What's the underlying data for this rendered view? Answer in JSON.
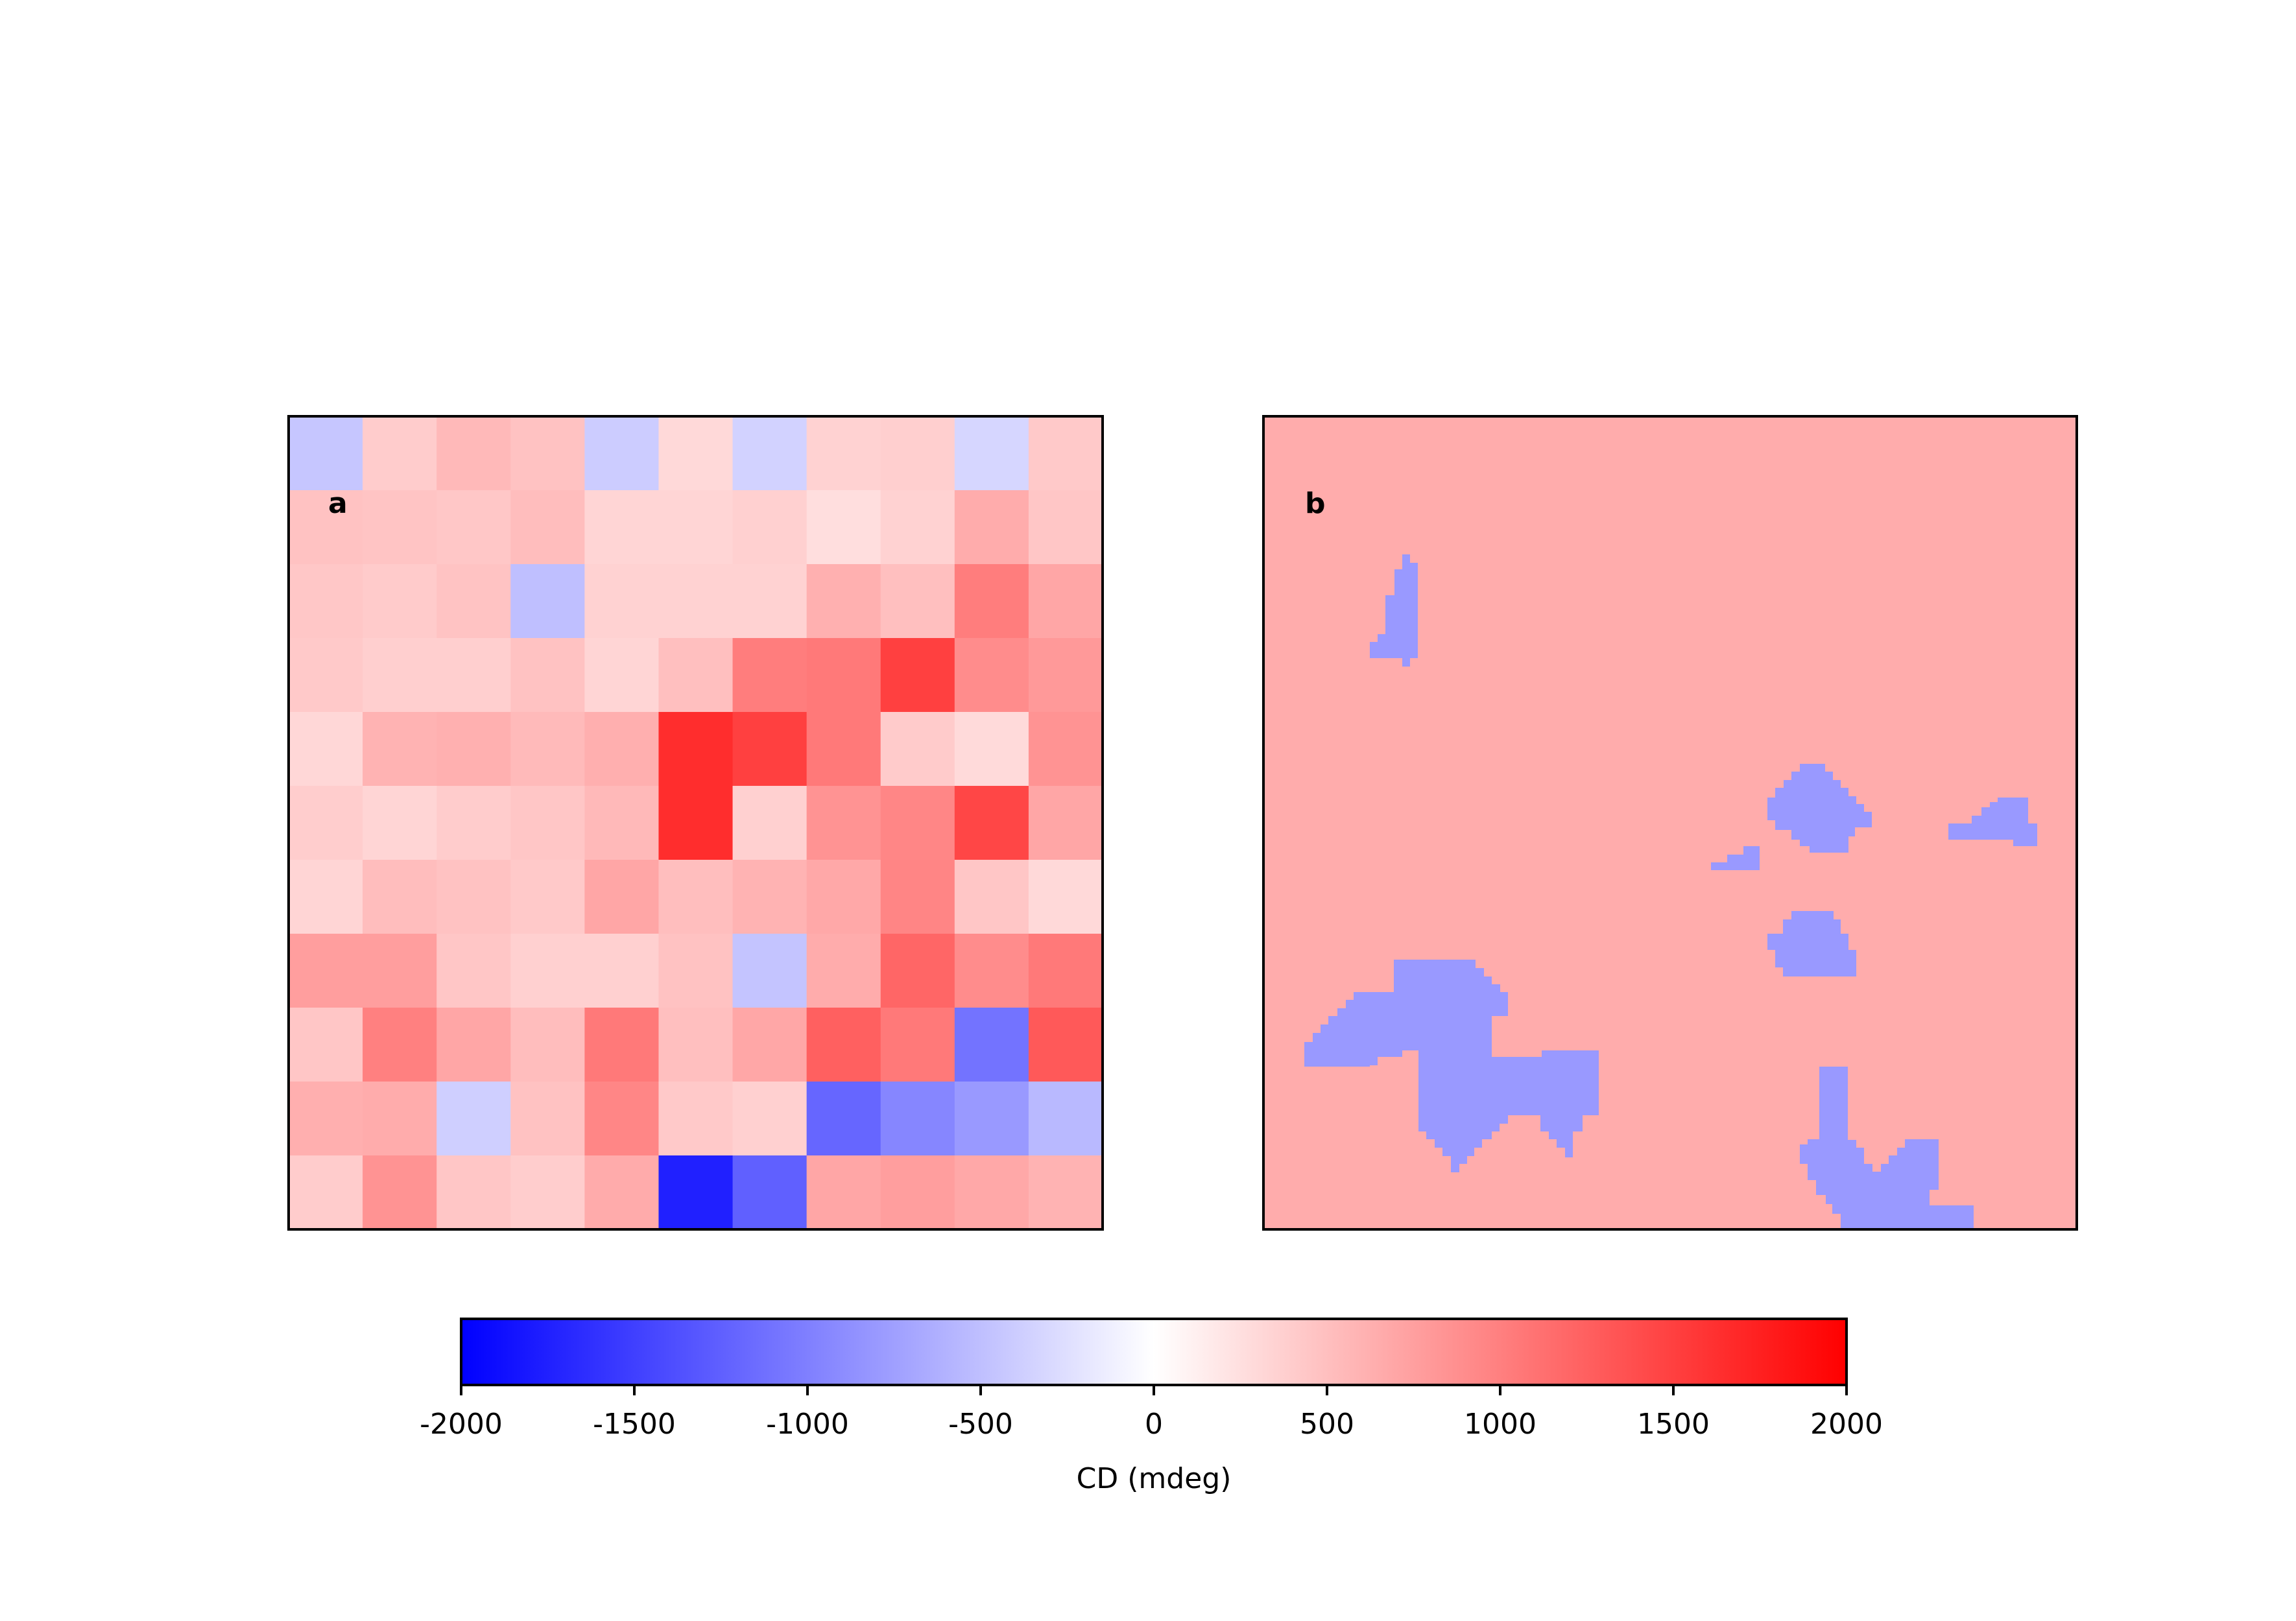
{
  "chart_data": [
    {
      "type": "heatmap",
      "panel_label": "a",
      "rows": 11,
      "cols": 11,
      "colormap": "bwr",
      "vmin": -2000,
      "vmax": 2000,
      "values": [
        [
          -450,
          400,
          550,
          480,
          -400,
          300,
          -350,
          350,
          380,
          -320,
          420
        ],
        [
          480,
          460,
          440,
          520,
          330,
          330,
          370,
          260,
          350,
          650,
          450
        ],
        [
          440,
          410,
          470,
          -500,
          350,
          350,
          350,
          620,
          500,
          1020,
          700
        ],
        [
          420,
          380,
          380,
          480,
          330,
          500,
          1020,
          1050,
          1500,
          900,
          800
        ],
        [
          310,
          600,
          620,
          540,
          630,
          1650,
          1500,
          1050,
          410,
          290,
          850
        ],
        [
          390,
          330,
          400,
          450,
          550,
          1650,
          370,
          850,
          950,
          1450,
          700
        ],
        [
          330,
          520,
          480,
          420,
          700,
          510,
          600,
          680,
          960,
          450,
          300
        ],
        [
          760,
          760,
          450,
          370,
          370,
          480,
          -460,
          650,
          1200,
          900,
          1050
        ],
        [
          450,
          1000,
          700,
          520,
          1050,
          500,
          690,
          1250,
          1050,
          -1100,
          1300
        ],
        [
          630,
          650,
          -380,
          480,
          950,
          420,
          370,
          -1200,
          -950,
          -800,
          -550
        ],
        [
          400,
          850,
          450,
          390,
          660,
          -1750,
          -1250,
          700,
          760,
          680,
          600
        ]
      ]
    },
    {
      "type": "heatmap",
      "panel_label": "b",
      "colormap": "bwr",
      "vmin": -2000,
      "vmax": 2000,
      "background_value": 650,
      "region_value": -800,
      "note": "binary map: background positive CD, patches of negative CD"
    },
    {
      "type": "colorbar",
      "colormap": "bwr",
      "range": [
        -2000,
        2000
      ],
      "ticks": [
        -2000,
        -1500,
        -1000,
        -500,
        0,
        500,
        1000,
        1500,
        2000
      ],
      "tick_labels": [
        "-2000",
        "-1500",
        "-1000",
        "-500",
        "0",
        "500",
        "1000",
        "1500",
        "2000"
      ],
      "xlabel": "CD (mdeg)",
      "orientation": "horizontal"
    }
  ]
}
